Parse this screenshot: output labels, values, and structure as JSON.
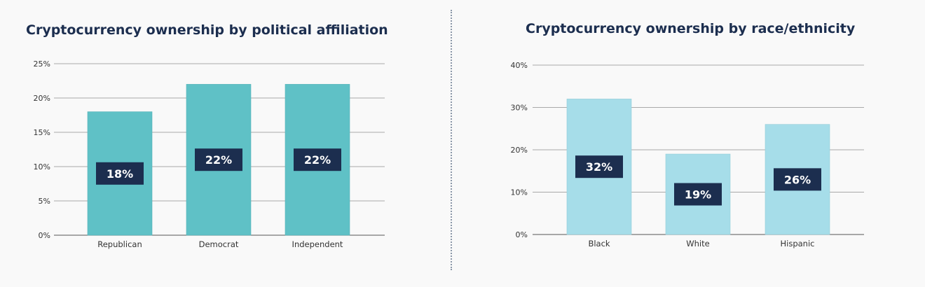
{
  "colors": {
    "background": "#f9f9f9",
    "title": "#1c2e4f",
    "bar_left": "#5fc1c6",
    "bar_right": "#a6dde9",
    "label_box": "#1c2e4f",
    "label_text": "#ffffff"
  },
  "chart_data": [
    {
      "type": "bar",
      "title": "Cryptocurrency ownership by political affiliation",
      "categories": [
        "Republican",
        "Democrat",
        "Independent"
      ],
      "values": [
        18,
        22,
        22
      ],
      "data_labels": [
        "18%",
        "22%",
        "22%"
      ],
      "yticks": [
        0,
        5,
        10,
        15,
        20,
        25
      ],
      "ytick_labels": [
        "0%",
        "5%",
        "10%",
        "15%",
        "20%",
        "25%"
      ],
      "ylim": [
        0,
        25
      ],
      "xlabel": "",
      "ylabel": "",
      "grid": true,
      "legend": false
    },
    {
      "type": "bar",
      "title": "Cryptocurrency ownership by race/ethnicity",
      "categories": [
        "Black",
        "White",
        "Hispanic"
      ],
      "values": [
        32,
        19,
        26
      ],
      "data_labels": [
        "32%",
        "19%",
        "26%"
      ],
      "yticks": [
        0,
        10,
        20,
        30,
        40
      ],
      "ytick_labels": [
        "0%",
        "10%",
        "20%",
        "30%",
        "40%"
      ],
      "ylim": [
        0,
        40
      ],
      "xlabel": "",
      "ylabel": "",
      "grid": true,
      "legend": false
    }
  ]
}
